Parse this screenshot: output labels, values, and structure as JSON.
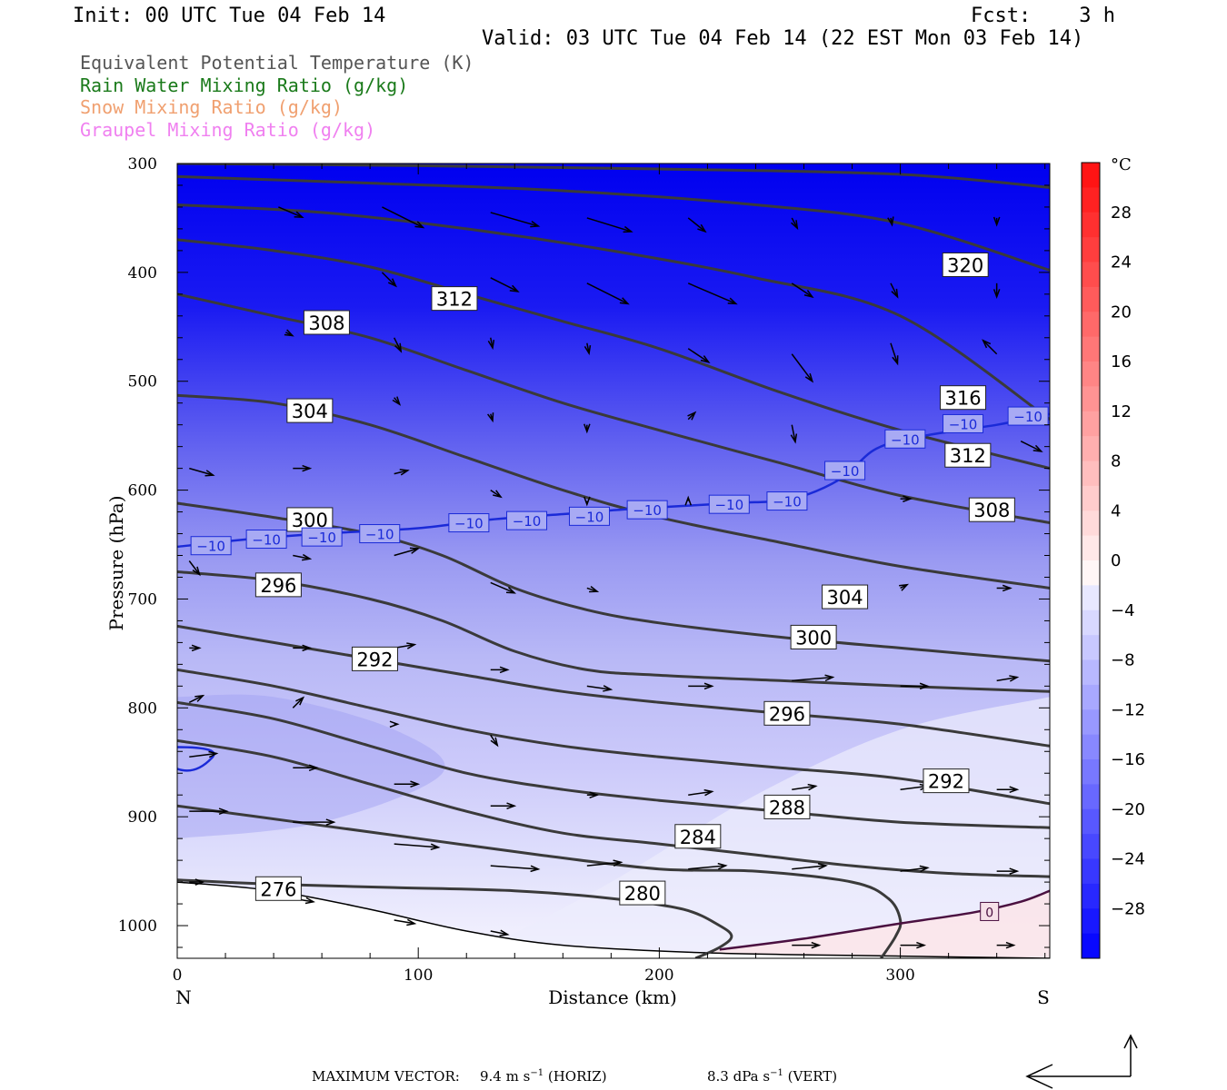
{
  "header": {
    "init": "Init: 00 UTC Tue 04 Feb 14",
    "fcst": "Fcst:    3 h",
    "valid": "Valid: 03 UTC Tue 04 Feb 14 (22 EST Mon 03 Feb 14)"
  },
  "legend": [
    {
      "label": "Equivalent Potential Temperature (K)",
      "color": "#555555"
    },
    {
      "label": "Rain Water Mixing Ratio (g/kg)",
      "color": "#1a7a1a"
    },
    {
      "label": "Snow Mixing Ratio (g/kg)",
      "color": "#f0a070"
    },
    {
      "label": "Graupel Mixing Ratio (g/kg)",
      "color": "#f080f0"
    }
  ],
  "chart_data": {
    "type": "cross-section",
    "xlabel": "Distance (km)",
    "ylabel": "Pressure (hPa)",
    "xlim": [
      0,
      362
    ],
    "ylim": [
      1030,
      300
    ],
    "x_ticks": [
      0,
      100,
      200,
      300
    ],
    "y_ticks": [
      300,
      400,
      500,
      600,
      700,
      800,
      900,
      1000
    ],
    "end_labels": {
      "left": "N",
      "right": "S"
    },
    "colorbar": {
      "unit": "°C",
      "labels": [
        "28",
        "24",
        "20",
        "16",
        "12",
        "8",
        "4",
        "0",
        "−4",
        "−8",
        "−12",
        "−16",
        "−20",
        "−24",
        "−28"
      ]
    },
    "theta_e_contours": [
      {
        "label": "276",
        "x": [
          0,
          40,
          90,
          140,
          180,
          210,
          225,
          230,
          225,
          215
        ],
        "p": [
          958,
          962,
          965,
          968,
          975,
          985,
          1000,
          1010,
          1020,
          1030
        ]
      },
      {
        "label": "280",
        "x": [
          0,
          50,
          100,
          150,
          200,
          240,
          280,
          295,
          300,
          298,
          292
        ],
        "p": [
          890,
          905,
          920,
          935,
          948,
          950,
          960,
          975,
          995,
          1010,
          1030
        ]
      },
      {
        "label": "284",
        "x": [
          0,
          40,
          80,
          120,
          160,
          200,
          240,
          280,
          320,
          362
        ],
        "p": [
          830,
          845,
          870,
          895,
          915,
          925,
          935,
          945,
          952,
          955
        ]
      },
      {
        "label": "288",
        "x": [
          0,
          40,
          80,
          120,
          160,
          200,
          250,
          300,
          362
        ],
        "p": [
          795,
          810,
          835,
          860,
          875,
          885,
          895,
          905,
          910
        ]
      },
      {
        "label": "292",
        "x": [
          0,
          40,
          80,
          120,
          160,
          200,
          250,
          300,
          362
        ],
        "p": [
          765,
          780,
          800,
          820,
          835,
          845,
          855,
          865,
          888
        ]
      },
      {
        "label": "296",
        "x": [
          0,
          40,
          80,
          120,
          160,
          200,
          250,
          300,
          362
        ],
        "p": [
          725,
          740,
          755,
          770,
          785,
          795,
          805,
          815,
          835
        ]
      },
      {
        "label": "300",
        "x": [
          0,
          40,
          80,
          110,
          140,
          170,
          200,
          250,
          300,
          362
        ],
        "p": [
          675,
          683,
          700,
          720,
          748,
          765,
          770,
          775,
          780,
          785
        ]
      },
      {
        "label": "304",
        "x": [
          0,
          40,
          80,
          110,
          140,
          170,
          200,
          250,
          300,
          362
        ],
        "p": [
          612,
          625,
          640,
          660,
          690,
          710,
          722,
          735,
          745,
          757
        ]
      },
      {
        "label": "308",
        "x": [
          0,
          40,
          80,
          120,
          160,
          200,
          250,
          300,
          362
        ],
        "p": [
          513,
          520,
          540,
          570,
          600,
          625,
          648,
          670,
          690
        ]
      },
      {
        "label": "312",
        "x": [
          0,
          40,
          80,
          120,
          160,
          200,
          250,
          300,
          362
        ],
        "p": [
          420,
          440,
          460,
          490,
          520,
          545,
          575,
          605,
          630
        ]
      },
      {
        "label": "316",
        "x": [
          0,
          40,
          80,
          120,
          160,
          200,
          250,
          300,
          362
        ],
        "p": [
          370,
          380,
          395,
          420,
          445,
          470,
          510,
          545,
          580
        ]
      },
      {
        "label": "320",
        "x": [
          0,
          60,
          120,
          180,
          240,
          300,
          362
        ],
        "p": [
          338,
          345,
          360,
          380,
          405,
          440,
          535
        ]
      },
      {
        "label": "",
        "x": [
          0,
          80,
          160,
          240,
          300,
          362
        ],
        "p": [
          312,
          318,
          325,
          338,
          355,
          398
        ]
      },
      {
        "label": "",
        "x": [
          0,
          100,
          200,
          300,
          362
        ],
        "p": [
          300,
          302,
          305,
          310,
          322
        ]
      }
    ],
    "theta_e_labels": [
      {
        "text": "320",
        "x": 327,
        "p": 393
      },
      {
        "text": "312",
        "x": 115,
        "p": 424
      },
      {
        "text": "308",
        "x": 62,
        "p": 446
      },
      {
        "text": "316",
        "x": 326,
        "p": 515
      },
      {
        "text": "304",
        "x": 55,
        "p": 527
      },
      {
        "text": "312",
        "x": 328,
        "p": 568
      },
      {
        "text": "308",
        "x": 338,
        "p": 618
      },
      {
        "text": "300",
        "x": 55,
        "p": 627
      },
      {
        "text": "296",
        "x": 42,
        "p": 687
      },
      {
        "text": "304",
        "x": 277,
        "p": 698
      },
      {
        "text": "300",
        "x": 264,
        "p": 735
      },
      {
        "text": "292",
        "x": 82,
        "p": 755
      },
      {
        "text": "296",
        "x": 253,
        "p": 805
      },
      {
        "text": "292",
        "x": 319,
        "p": 867
      },
      {
        "text": "288",
        "x": 253,
        "p": 891
      },
      {
        "text": "284",
        "x": 216,
        "p": 918
      },
      {
        "text": "280",
        "x": 193,
        "p": 970
      },
      {
        "text": "276",
        "x": 42,
        "p": 966
      }
    ],
    "isotherm_minus10": {
      "x": [
        0,
        30,
        60,
        100,
        130,
        160,
        190,
        230,
        255,
        275,
        290,
        310,
        340,
        362
      ],
      "p": [
        652,
        645,
        640,
        635,
        627,
        622,
        617,
        612,
        608,
        590,
        562,
        550,
        540,
        530
      ],
      "label": "−10",
      "label_x": [
        14,
        37,
        60,
        84,
        121,
        145,
        171,
        195,
        229,
        253,
        277,
        302,
        326,
        353
      ],
      "label_p": [
        651,
        645,
        643,
        640,
        630,
        628,
        624,
        618,
        613,
        610,
        582,
        553,
        539,
        532
      ]
    },
    "isotherm_zero": {
      "label": "0",
      "x": [
        225,
        260,
        300,
        330,
        350,
        362
      ],
      "p": [
        1022,
        1012,
        998,
        988,
        978,
        968
      ],
      "label_x": 337,
      "label_p": 987
    },
    "temperature_field_celsius": [
      {
        "p": 300,
        "temp": -32
      },
      {
        "p": 400,
        "temp": -28
      },
      {
        "p": 500,
        "temp": -22
      },
      {
        "p": 600,
        "temp": -14
      },
      {
        "p": 700,
        "temp": -9
      },
      {
        "p": 800,
        "temp": -6
      },
      {
        "p": 900,
        "temp": -3
      },
      {
        "p": 1000,
        "temp": 0
      }
    ],
    "wind_vectors": [
      {
        "x": 42,
        "p": 340,
        "u": 3.5,
        "w": -1.5
      },
      {
        "x": 85,
        "p": 340,
        "u": 6,
        "w": -3
      },
      {
        "x": 130,
        "p": 345,
        "u": 7,
        "w": -2
      },
      {
        "x": 170,
        "p": 350,
        "u": 6.5,
        "w": -2
      },
      {
        "x": 212,
        "p": 350,
        "u": 2.5,
        "w": -2
      },
      {
        "x": 255,
        "p": 350,
        "u": 0.8,
        "w": -1.5
      },
      {
        "x": 296,
        "p": 350,
        "u": 0.2,
        "w": -1
      },
      {
        "x": 340,
        "p": 350,
        "u": 0,
        "w": -1
      },
      {
        "x": 85,
        "p": 400,
        "u": 2,
        "w": -2
      },
      {
        "x": 130,
        "p": 405,
        "u": 4,
        "w": -2
      },
      {
        "x": 170,
        "p": 410,
        "u": 6,
        "w": -3
      },
      {
        "x": 212,
        "p": 410,
        "u": 7,
        "w": -3
      },
      {
        "x": 255,
        "p": 410,
        "u": 3,
        "w": -2
      },
      {
        "x": 296,
        "p": 410,
        "u": 1,
        "w": -2
      },
      {
        "x": 340,
        "p": 410,
        "u": 0,
        "w": -2
      },
      {
        "x": 45,
        "p": 455,
        "u": 1,
        "w": -0.5
      },
      {
        "x": 90,
        "p": 460,
        "u": 1,
        "w": -2
      },
      {
        "x": 130,
        "p": 460,
        "u": 0.3,
        "w": -1.5
      },
      {
        "x": 170,
        "p": 465,
        "u": 0.3,
        "w": -1.5
      },
      {
        "x": 212,
        "p": 470,
        "u": 3,
        "w": -2
      },
      {
        "x": 255,
        "p": 475,
        "u": 3,
        "w": -4
      },
      {
        "x": 296,
        "p": 465,
        "u": 1,
        "w": -3
      },
      {
        "x": 340,
        "p": 475,
        "u": -2,
        "w": 2
      },
      {
        "x": 90,
        "p": 515,
        "u": 0.8,
        "w": -1
      },
      {
        "x": 130,
        "p": 530,
        "u": 0.3,
        "w": -1
      },
      {
        "x": 170,
        "p": 540,
        "u": 0,
        "w": -1
      },
      {
        "x": 212,
        "p": 535,
        "u": 1,
        "w": 1
      },
      {
        "x": 255,
        "p": 540,
        "u": 0.5,
        "w": -2.5
      },
      {
        "x": 300,
        "p": 545,
        "u": 3,
        "w": -2
      },
      {
        "x": 350,
        "p": 555,
        "u": 3,
        "w": -1.5
      },
      {
        "x": 5,
        "p": 580,
        "u": 3.5,
        "w": -1
      },
      {
        "x": 48,
        "p": 580,
        "u": 2.5,
        "w": 0
      },
      {
        "x": 90,
        "p": 585,
        "u": 2,
        "w": 0.5
      },
      {
        "x": 130,
        "p": 600,
        "u": 1.5,
        "w": -1
      },
      {
        "x": 170,
        "p": 610,
        "u": 0,
        "w": -0.5
      },
      {
        "x": 212,
        "p": 610,
        "u": 0,
        "w": 0.5
      },
      {
        "x": 300,
        "p": 608,
        "u": 1.5,
        "w": 0
      },
      {
        "x": 340,
        "p": 610,
        "u": 1,
        "w": -0.5
      },
      {
        "x": 5,
        "p": 665,
        "u": 1.5,
        "w": -2
      },
      {
        "x": 48,
        "p": 660,
        "u": 2.5,
        "w": -0.5
      },
      {
        "x": 90,
        "p": 660,
        "u": 3.5,
        "w": 1
      },
      {
        "x": 130,
        "p": 685,
        "u": 3.5,
        "w": -1.5
      },
      {
        "x": 170,
        "p": 690,
        "u": 1.5,
        "w": -0.5
      },
      {
        "x": 300,
        "p": 690,
        "u": 1,
        "w": 0.5
      },
      {
        "x": 340,
        "p": 690,
        "u": 2,
        "w": 0
      },
      {
        "x": 5,
        "p": 745,
        "u": 1.5,
        "w": 0
      },
      {
        "x": 48,
        "p": 745,
        "u": 2.5,
        "w": 0
      },
      {
        "x": 90,
        "p": 745,
        "u": 3,
        "w": 0.5
      },
      {
        "x": 130,
        "p": 765,
        "u": 2.5,
        "w": 0
      },
      {
        "x": 170,
        "p": 780,
        "u": 3.5,
        "w": -0.5
      },
      {
        "x": 212,
        "p": 780,
        "u": 3.5,
        "w": 0
      },
      {
        "x": 255,
        "p": 775,
        "u": 6,
        "w": 0.5
      },
      {
        "x": 300,
        "p": 780,
        "u": 4,
        "w": 0
      },
      {
        "x": 340,
        "p": 775,
        "u": 3,
        "w": 0.5
      },
      {
        "x": 5,
        "p": 795,
        "u": 2,
        "w": 1
      },
      {
        "x": 48,
        "p": 800,
        "u": 1.5,
        "w": 1.5
      },
      {
        "x": 90,
        "p": 815,
        "u": 0.5,
        "w": 0
      },
      {
        "x": 130,
        "p": 825,
        "u": 1,
        "w": -1.5
      },
      {
        "x": 5,
        "p": 845,
        "u": 4,
        "w": 0.5
      },
      {
        "x": 48,
        "p": 855,
        "u": 3.5,
        "w": 0
      },
      {
        "x": 90,
        "p": 870,
        "u": 3.5,
        "w": 0
      },
      {
        "x": 130,
        "p": 890,
        "u": 3.5,
        "w": 0
      },
      {
        "x": 170,
        "p": 880,
        "u": 1.5,
        "w": 0
      },
      {
        "x": 212,
        "p": 880,
        "u": 3.5,
        "w": 0.5
      },
      {
        "x": 255,
        "p": 875,
        "u": 3.5,
        "w": 0.5
      },
      {
        "x": 300,
        "p": 875,
        "u": 4,
        "w": 0.5
      },
      {
        "x": 340,
        "p": 875,
        "u": 3,
        "w": 0
      },
      {
        "x": 5,
        "p": 895,
        "u": 5.5,
        "w": 0
      },
      {
        "x": 48,
        "p": 905,
        "u": 6,
        "w": 0
      },
      {
        "x": 90,
        "p": 925,
        "u": 6.5,
        "w": -0.5
      },
      {
        "x": 130,
        "p": 945,
        "u": 7,
        "w": -0.5
      },
      {
        "x": 170,
        "p": 945,
        "u": 5,
        "w": 0.5
      },
      {
        "x": 212,
        "p": 948,
        "u": 5.5,
        "w": 0.5
      },
      {
        "x": 255,
        "p": 948,
        "u": 5,
        "w": 0.5
      },
      {
        "x": 300,
        "p": 950,
        "u": 4,
        "w": 0.5
      },
      {
        "x": 340,
        "p": 950,
        "u": 3,
        "w": 0
      },
      {
        "x": 5,
        "p": 960,
        "u": 2,
        "w": 0
      },
      {
        "x": 48,
        "p": 975,
        "u": 3,
        "w": -0.5
      },
      {
        "x": 90,
        "p": 995,
        "u": 3,
        "w": -0.5
      },
      {
        "x": 130,
        "p": 1005,
        "u": 2.5,
        "w": -0.5
      },
      {
        "x": 255,
        "p": 1018,
        "u": 4,
        "w": 0
      },
      {
        "x": 300,
        "p": 1018,
        "u": 3.5,
        "w": 0
      },
      {
        "x": 340,
        "p": 1018,
        "u": 2.5,
        "w": 0
      }
    ]
  },
  "footer": {
    "max_vector_label": "MAXIMUM VECTOR:",
    "horiz_value": "9.4 m s",
    "horiz_exp": "−1",
    "horiz_unit": "(HORIZ)",
    "vert_value": "8.3 dPa s",
    "vert_exp": "−1",
    "vert_unit": "(VERT)"
  }
}
